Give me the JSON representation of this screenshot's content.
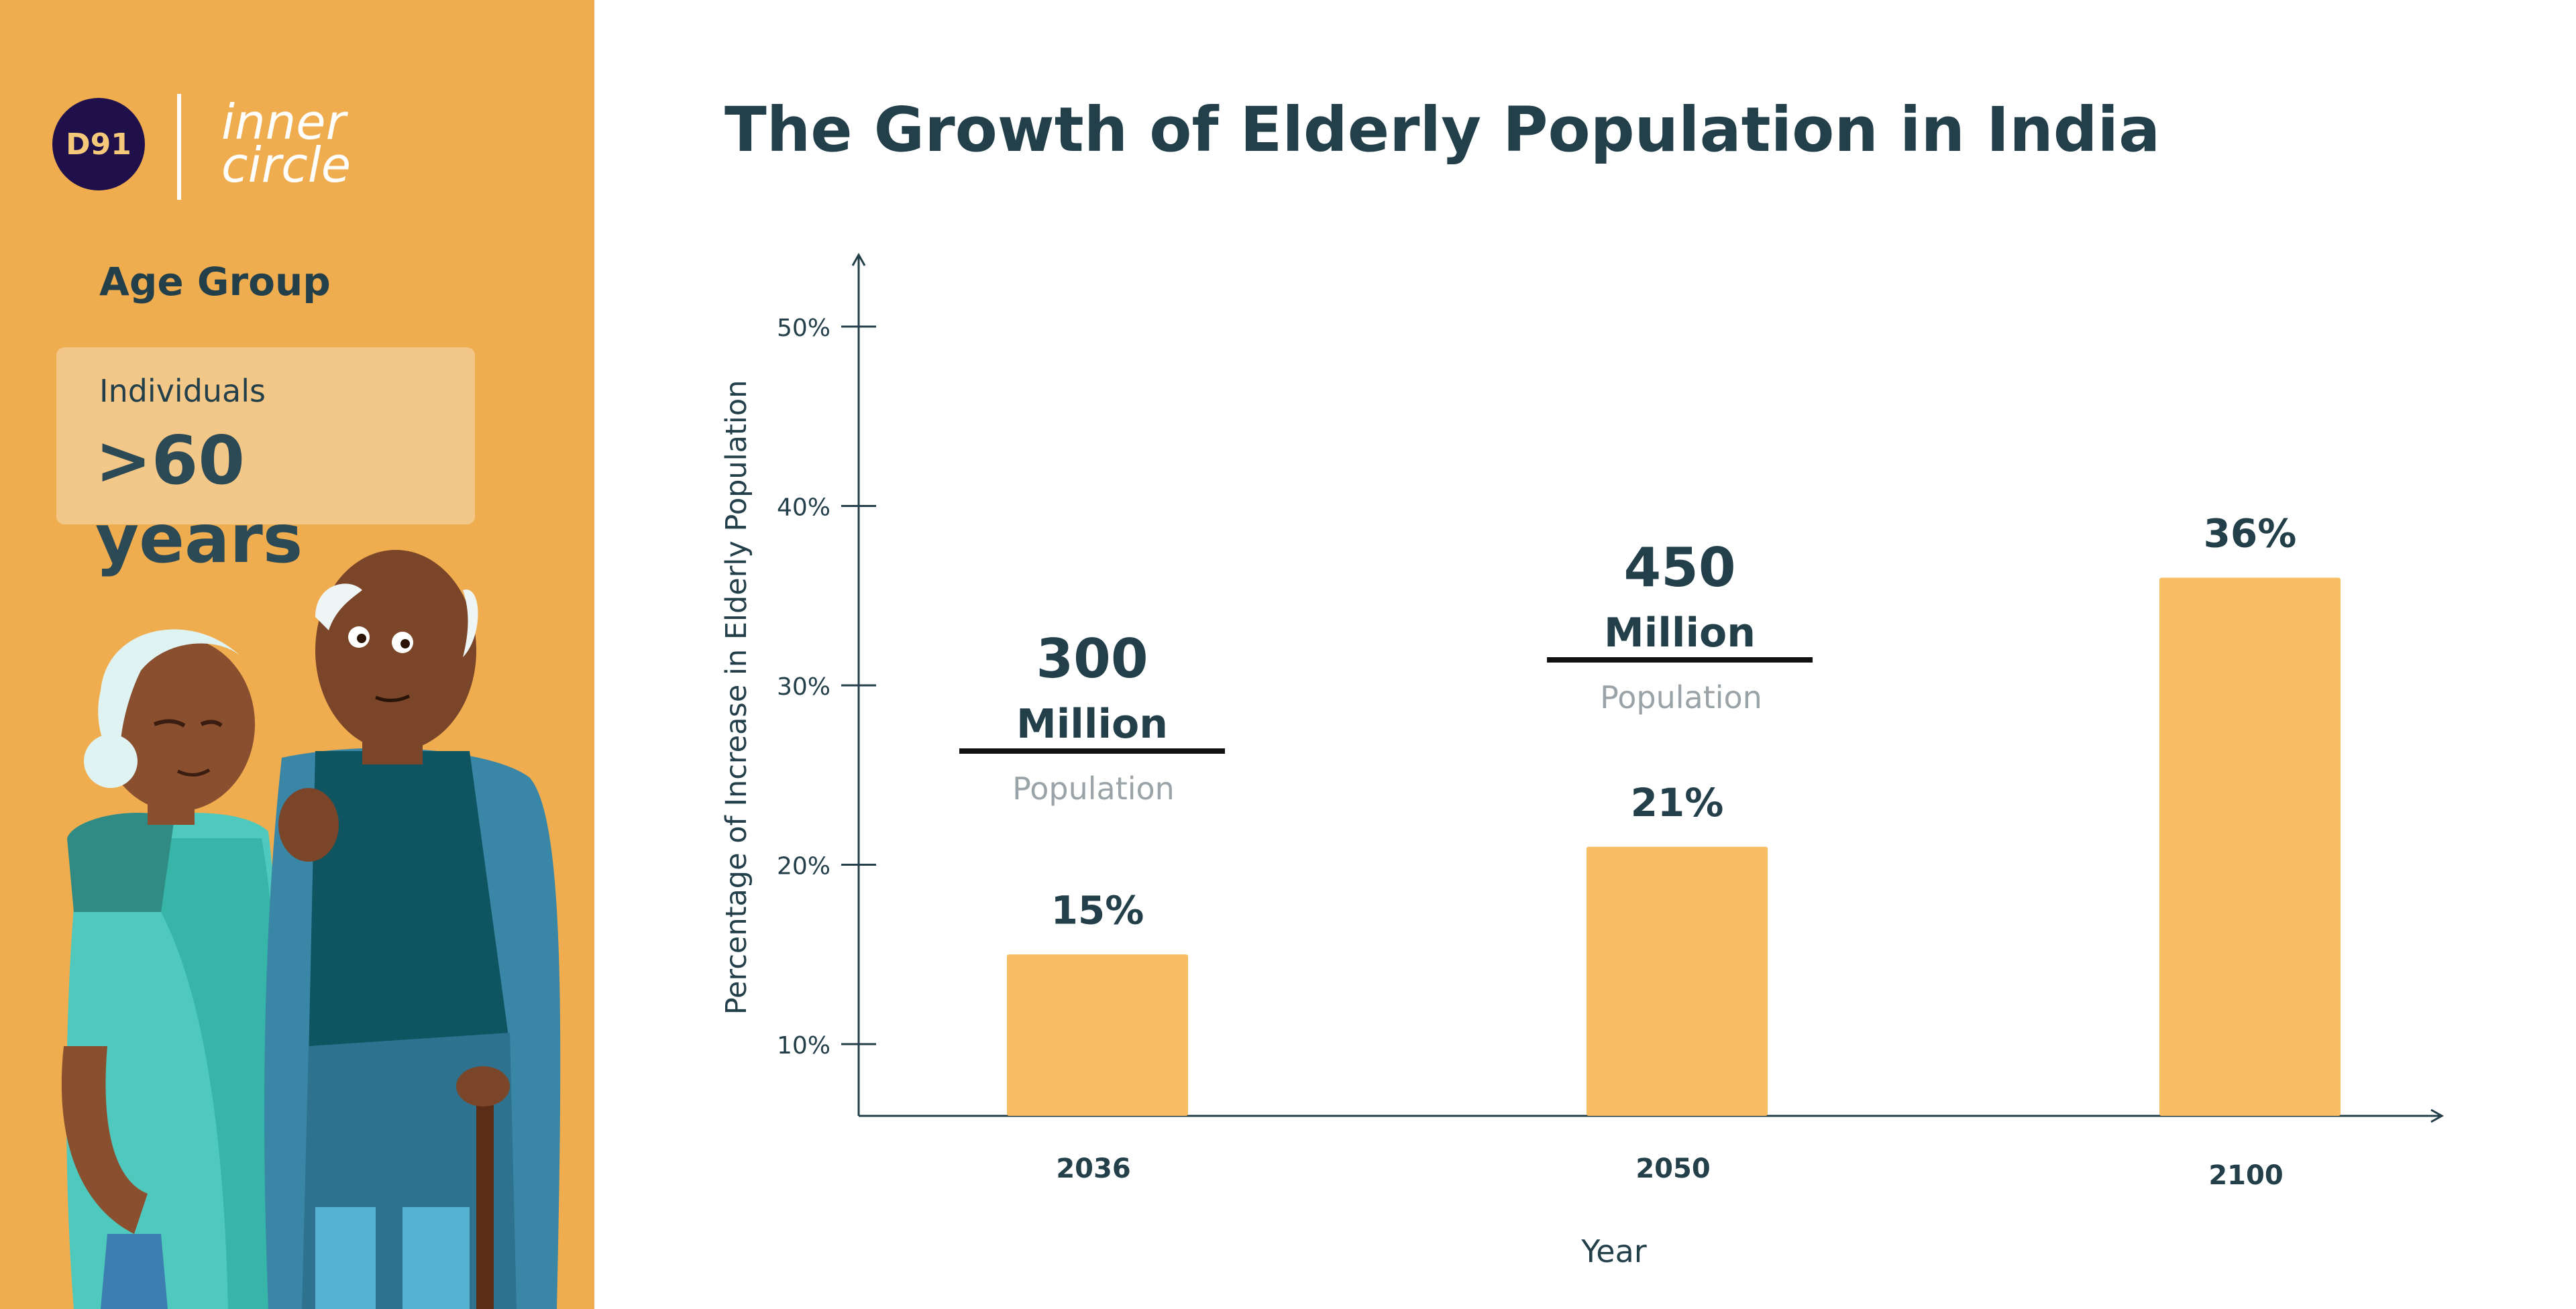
{
  "brand": {
    "badge": "D91",
    "wordmark": [
      "inner",
      "circle"
    ]
  },
  "sidebar": {
    "heading": "Age Group",
    "card_label": "Individuals",
    "card_value": ">60 years"
  },
  "colors": {
    "sidebar_bg": "#efad4f",
    "bar": "#f9bd63",
    "text_dark": "#233f4a",
    "muted": "#9aa3a8"
  },
  "chart_data": {
    "type": "bar",
    "title": "The Growth of Elderly Population in India",
    "xlabel": "Year",
    "ylabel": "Percentage of Increase in Elderly Population",
    "categories": [
      "2036",
      "2050",
      "2100"
    ],
    "values": [
      15,
      21,
      36
    ],
    "value_labels": [
      "15%",
      "21%",
      "36%"
    ],
    "yticks": [
      "10%",
      "20%",
      "30%",
      "40%",
      "50%"
    ],
    "ytick_values": [
      10,
      20,
      30,
      40,
      50
    ],
    "ylim": [
      6,
      54
    ],
    "annotations": [
      {
        "number": "300",
        "unit": "Million",
        "label": "Population"
      },
      {
        "number": "450",
        "unit": "Million",
        "label": "Population"
      }
    ]
  }
}
